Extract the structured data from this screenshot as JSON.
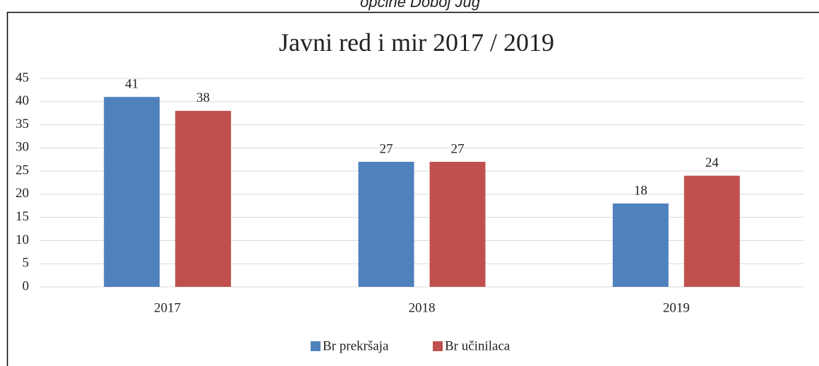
{
  "caption": "općine Doboj Jug",
  "chart_data": {
    "type": "bar",
    "title": "Javni red i mir 2017 / 2019",
    "categories": [
      "2017",
      "2018",
      "2019"
    ],
    "series": [
      {
        "name": "Br prekršaja",
        "color": "#4f81bd",
        "values": [
          41,
          27,
          18
        ]
      },
      {
        "name": "Br učinilaca",
        "color": "#c0504d",
        "values": [
          38,
          27,
          24
        ]
      }
    ],
    "ylim": [
      0,
      45
    ],
    "yticks": [
      0,
      5,
      10,
      15,
      20,
      25,
      30,
      35,
      40,
      45
    ],
    "grid": true,
    "legend": "bottom"
  }
}
